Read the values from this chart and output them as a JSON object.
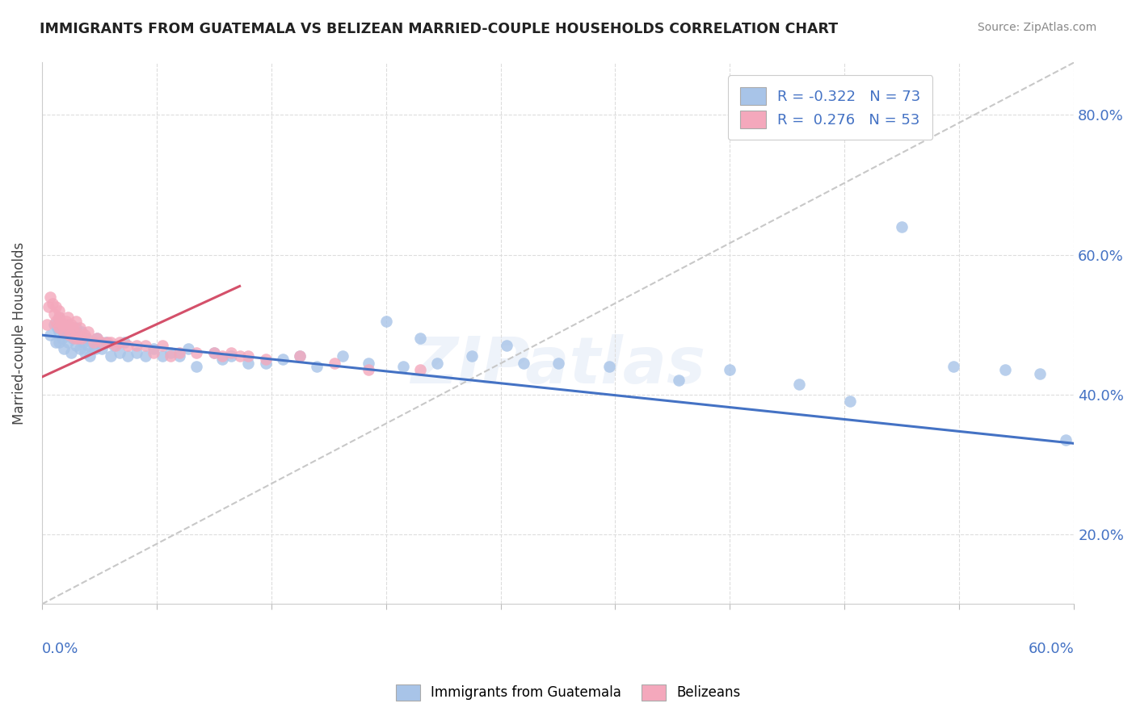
{
  "title": "IMMIGRANTS FROM GUATEMALA VS BELIZEAN MARRIED-COUPLE HOUSEHOLDS CORRELATION CHART",
  "source": "Source: ZipAtlas.com",
  "legend_entry1": "R = -0.322   N = 73",
  "legend_entry2": "R =  0.276   N = 53",
  "legend_label1": "Immigrants from Guatemala",
  "legend_label2": "Belizeans",
  "color_blue": "#a8c4e8",
  "color_pink": "#f4a8bc",
  "color_blue_trend": "#4472c4",
  "color_pink_trend": "#d4506a",
  "color_ref": "#c8c8c8",
  "xmin": 0.0,
  "xmax": 0.6,
  "ymin": 0.1,
  "ymax": 0.875,
  "yticks": [
    0.2,
    0.4,
    0.6,
    0.8
  ],
  "trendline_blue": [
    0.0,
    0.485,
    0.6,
    0.33
  ],
  "trendline_pink": [
    0.0,
    0.425,
    0.115,
    0.555
  ],
  "refline": [
    0.0,
    0.1,
    0.6,
    0.875
  ],
  "scatter_blue_x": [
    0.005,
    0.007,
    0.008,
    0.009,
    0.01,
    0.01,
    0.01,
    0.012,
    0.012,
    0.013,
    0.014,
    0.015,
    0.015,
    0.016,
    0.017,
    0.018,
    0.019,
    0.02,
    0.02,
    0.021,
    0.022,
    0.023,
    0.024,
    0.025,
    0.026,
    0.027,
    0.028,
    0.03,
    0.031,
    0.032,
    0.035,
    0.037,
    0.04,
    0.042,
    0.045,
    0.048,
    0.05,
    0.055,
    0.06,
    0.065,
    0.07,
    0.075,
    0.08,
    0.085,
    0.09,
    0.1,
    0.105,
    0.11,
    0.12,
    0.13,
    0.14,
    0.15,
    0.16,
    0.175,
    0.19,
    0.21,
    0.23,
    0.25,
    0.28,
    0.3,
    0.33,
    0.37,
    0.4,
    0.44,
    0.47,
    0.5,
    0.53,
    0.56,
    0.58,
    0.595,
    0.2,
    0.22,
    0.27
  ],
  "scatter_blue_y": [
    0.485,
    0.5,
    0.475,
    0.495,
    0.49,
    0.51,
    0.475,
    0.48,
    0.5,
    0.465,
    0.49,
    0.475,
    0.5,
    0.485,
    0.46,
    0.48,
    0.49,
    0.47,
    0.495,
    0.48,
    0.465,
    0.49,
    0.475,
    0.46,
    0.48,
    0.47,
    0.455,
    0.47,
    0.465,
    0.48,
    0.465,
    0.475,
    0.455,
    0.47,
    0.46,
    0.475,
    0.455,
    0.46,
    0.455,
    0.465,
    0.455,
    0.46,
    0.455,
    0.465,
    0.44,
    0.46,
    0.45,
    0.455,
    0.445,
    0.445,
    0.45,
    0.455,
    0.44,
    0.455,
    0.445,
    0.44,
    0.445,
    0.455,
    0.445,
    0.445,
    0.44,
    0.42,
    0.435,
    0.415,
    0.39,
    0.64,
    0.44,
    0.435,
    0.43,
    0.335,
    0.505,
    0.48,
    0.47
  ],
  "scatter_pink_x": [
    0.003,
    0.004,
    0.005,
    0.006,
    0.007,
    0.008,
    0.008,
    0.009,
    0.01,
    0.01,
    0.01,
    0.011,
    0.012,
    0.013,
    0.014,
    0.015,
    0.015,
    0.016,
    0.017,
    0.018,
    0.019,
    0.02,
    0.02,
    0.021,
    0.022,
    0.023,
    0.025,
    0.027,
    0.03,
    0.032,
    0.035,
    0.038,
    0.04,
    0.043,
    0.045,
    0.05,
    0.055,
    0.06,
    0.065,
    0.07,
    0.075,
    0.08,
    0.09,
    0.1,
    0.105,
    0.11,
    0.115,
    0.12,
    0.13,
    0.15,
    0.17,
    0.19,
    0.22
  ],
  "scatter_pink_y": [
    0.5,
    0.525,
    0.54,
    0.53,
    0.515,
    0.505,
    0.525,
    0.5,
    0.51,
    0.52,
    0.495,
    0.505,
    0.5,
    0.49,
    0.505,
    0.495,
    0.51,
    0.485,
    0.5,
    0.495,
    0.48,
    0.49,
    0.505,
    0.48,
    0.495,
    0.48,
    0.485,
    0.49,
    0.475,
    0.48,
    0.475,
    0.475,
    0.475,
    0.47,
    0.475,
    0.47,
    0.47,
    0.47,
    0.46,
    0.47,
    0.455,
    0.46,
    0.46,
    0.46,
    0.455,
    0.46,
    0.455,
    0.455,
    0.45,
    0.455,
    0.445,
    0.435,
    0.435
  ]
}
